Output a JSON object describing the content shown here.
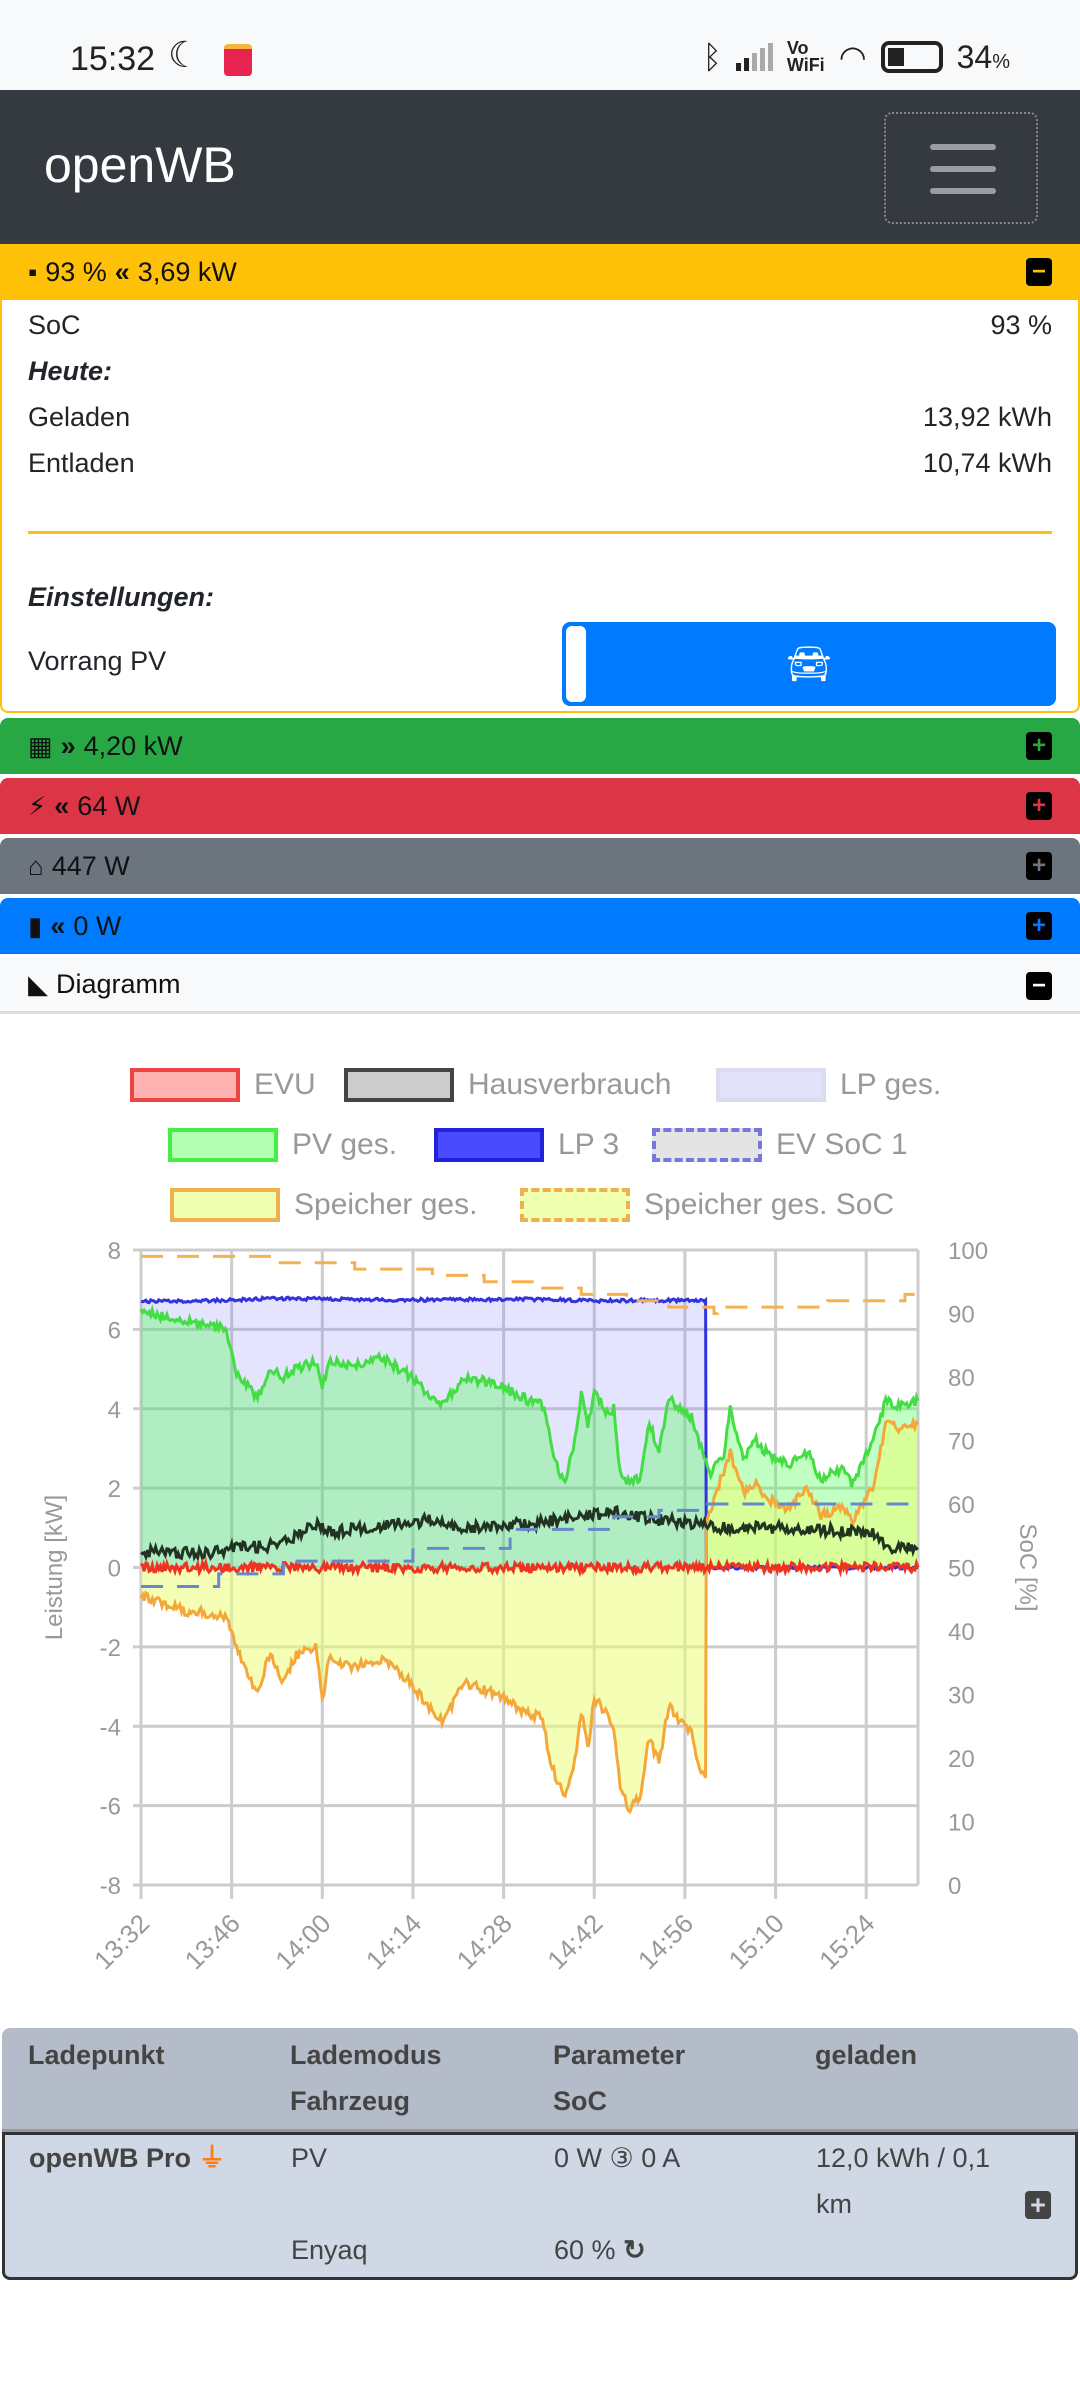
{
  "status": {
    "time": "15:32",
    "battery": "34",
    "battery_unit": "%",
    "vowifi_top": "Vo",
    "vowifi_bottom": "WiFi"
  },
  "header": {
    "title": "openWB"
  },
  "battery_bar": {
    "soc": "93 %",
    "power": "3,69 kW",
    "color": "#ffc107"
  },
  "battery_card": {
    "soc_label": "SoC",
    "soc_value": "93 %",
    "today_label": "Heute:",
    "charged_label": "Geladen",
    "charged_value": "13,92 kWh",
    "discharged_label": "Entladen",
    "discharged_value": "10,74 kWh",
    "settings_label": "Einstellungen:",
    "priority_label": "Vorrang PV"
  },
  "bars": [
    {
      "name": "pv",
      "value": "4,20 kW",
      "color": "#28a745"
    },
    {
      "name": "grid",
      "value": "64 W",
      "color": "#dc3545"
    },
    {
      "name": "house",
      "value": "447 W",
      "color": "#6c757d"
    },
    {
      "name": "chargepoints",
      "value": "0 W",
      "color": "#007bff"
    },
    {
      "name": "diagram",
      "value": "Diagramm",
      "color": "#f8f9fa"
    }
  ],
  "table": {
    "headers": [
      "Ladepunkt",
      "Lademodus",
      "Fahrzeug",
      "Parameter",
      "SoC",
      "geladen"
    ],
    "row": {
      "name": "openWB Pro",
      "mode": "PV",
      "vehicle": "Enyaq",
      "params": "0 W ③ 0 A",
      "soc": "60 %",
      "charged": "12,0 kWh / 0,1",
      "charged_unit": "km"
    }
  },
  "chart_data": {
    "type": "line",
    "ylabel": "Leistung [kW]",
    "y2label": "SoC [%]",
    "ylim": [
      -8,
      8
    ],
    "y2lim": [
      0,
      100
    ],
    "yticks": [
      "8",
      "6",
      "4",
      "2",
      "0",
      "-2",
      "-4",
      "-6",
      "-8"
    ],
    "y2ticks": [
      "100",
      "90",
      "80",
      "70",
      "60",
      "50",
      "40",
      "30",
      "20",
      "10",
      "0"
    ],
    "xticks": [
      "13:32",
      "13:46",
      "14:00",
      "14:14",
      "14:28",
      "14:42",
      "14:56",
      "15:10",
      "15:24"
    ],
    "x_unit": "minutes since 13:32",
    "xlim": [
      0,
      120
    ],
    "legend": [
      {
        "label": "EVU",
        "fill": "#ffb3b3",
        "border": "#ee4444",
        "dash": false
      },
      {
        "label": "Hausverbrauch",
        "fill": "#cccccc",
        "border": "#444444",
        "dash": false
      },
      {
        "label": "LP ges.",
        "fill": "#e2e2fb",
        "border": "#dcdcf0",
        "dash": false
      },
      {
        "label": "PV ges.",
        "fill": "#b3ffb3",
        "border": "#44ee44",
        "dash": false
      },
      {
        "label": "LP 3",
        "fill": "#4a4aff",
        "border": "#2222dd",
        "dash": false
      },
      {
        "label": "EV SoC 1",
        "fill": "#e4e4e4",
        "border": "#7777dd",
        "dash": true
      },
      {
        "label": "Speicher ges.",
        "fill": "#f0ffb0",
        "border": "#f0b050",
        "dash": false
      },
      {
        "label": "Speicher ges. SoC",
        "fill": "#f0ffb0",
        "border": "#f0b050",
        "dash": true
      }
    ],
    "series": [
      {
        "name": "LP ges.",
        "axis": "left",
        "points": [
          [
            0,
            6.7
          ],
          [
            10,
            6.72
          ],
          [
            20,
            6.78
          ],
          [
            40,
            6.74
          ],
          [
            60,
            6.76
          ],
          [
            70,
            6.72
          ],
          [
            87.2,
            6.74
          ],
          [
            87.3,
            0
          ],
          [
            120,
            0
          ]
        ]
      },
      {
        "name": "LP 3",
        "axis": "left",
        "points": [
          [
            0,
            6.7
          ],
          [
            10,
            6.72
          ],
          [
            20,
            6.78
          ],
          [
            40,
            6.74
          ],
          [
            60,
            6.76
          ],
          [
            70,
            6.72
          ],
          [
            87.2,
            6.74
          ],
          [
            87.3,
            0
          ],
          [
            120,
            0
          ]
        ]
      },
      {
        "name": "PV ges.",
        "axis": "left",
        "points": [
          [
            0,
            6.5
          ],
          [
            6.5,
            6.2
          ],
          [
            13,
            6.0
          ],
          [
            15,
            4.8
          ],
          [
            18,
            4.3
          ],
          [
            20,
            5.0
          ],
          [
            22,
            4.8
          ],
          [
            24,
            5.0
          ],
          [
            27,
            5.2
          ],
          [
            28,
            4.5
          ],
          [
            29,
            5.2
          ],
          [
            33,
            5.1
          ],
          [
            37,
            5.3
          ],
          [
            41,
            4.9
          ],
          [
            45,
            4.3
          ],
          [
            46.5,
            4.1
          ],
          [
            50,
            4.8
          ],
          [
            55,
            4.6
          ],
          [
            60,
            4.2
          ],
          [
            62,
            4.1
          ],
          [
            63,
            3.5
          ],
          [
            64,
            2.6
          ],
          [
            65.5,
            2.2
          ],
          [
            67,
            3.2
          ],
          [
            68,
            4.4
          ],
          [
            69,
            3.5
          ],
          [
            70,
            4.4
          ],
          [
            72,
            3.9
          ],
          [
            73,
            4.0
          ],
          [
            74,
            2.4
          ],
          [
            75.5,
            2.1
          ],
          [
            77,
            2.3
          ],
          [
            78.5,
            3.6
          ],
          [
            80,
            3.0
          ],
          [
            81.5,
            4.3
          ],
          [
            83,
            4.0
          ],
          [
            85,
            3.8
          ],
          [
            87,
            2.7
          ],
          [
            88,
            2.4
          ],
          [
            90,
            2.8
          ],
          [
            91,
            4.0
          ],
          [
            93,
            2.7
          ],
          [
            95,
            3.2
          ],
          [
            97,
            2.8
          ],
          [
            100,
            2.6
          ],
          [
            103,
            2.9
          ],
          [
            105,
            2.2
          ],
          [
            108,
            2.5
          ],
          [
            110,
            2.1
          ],
          [
            113,
            3.2
          ],
          [
            115,
            4.2
          ],
          [
            117,
            4.1
          ],
          [
            120,
            4.2
          ]
        ]
      },
      {
        "name": "Speicher ges.",
        "axis": "left",
        "points": [
          [
            0,
            -0.7
          ],
          [
            7,
            -1.1
          ],
          [
            13,
            -1.2
          ],
          [
            15,
            -2.1
          ],
          [
            18,
            -3.2
          ],
          [
            20,
            -2.1
          ],
          [
            22,
            -2.9
          ],
          [
            24,
            -2.2
          ],
          [
            27,
            -2.0
          ],
          [
            28,
            -3.4
          ],
          [
            29,
            -2.3
          ],
          [
            33,
            -2.5
          ],
          [
            37,
            -2.3
          ],
          [
            41,
            -2.8
          ],
          [
            45,
            -3.6
          ],
          [
            46.5,
            -3.9
          ],
          [
            50,
            -2.9
          ],
          [
            55,
            -3.2
          ],
          [
            60,
            -3.7
          ],
          [
            62,
            -3.8
          ],
          [
            63,
            -4.7
          ],
          [
            64,
            -5.3
          ],
          [
            65.5,
            -5.8
          ],
          [
            67,
            -4.9
          ],
          [
            68,
            -3.6
          ],
          [
            69,
            -4.6
          ],
          [
            70,
            -3.3
          ],
          [
            72,
            -3.7
          ],
          [
            73,
            -4.1
          ],
          [
            74,
            -5.5
          ],
          [
            75.5,
            -6.1
          ],
          [
            77,
            -5.8
          ],
          [
            78.5,
            -4.3
          ],
          [
            80,
            -4.9
          ],
          [
            81.5,
            -3.5
          ],
          [
            83,
            -3.8
          ],
          [
            85,
            -4.1
          ],
          [
            86.5,
            -5.2
          ],
          [
            87.2,
            -5.3
          ],
          [
            87.3,
            1.2
          ],
          [
            88,
            1.5
          ],
          [
            91,
            2.9
          ],
          [
            93,
            1.9
          ],
          [
            95,
            2.1
          ],
          [
            97,
            1.7
          ],
          [
            100,
            1.5
          ],
          [
            103,
            2.0
          ],
          [
            105,
            1.3
          ],
          [
            108,
            1.5
          ],
          [
            110,
            1.2
          ],
          [
            113,
            2.0
          ],
          [
            115,
            3.6
          ],
          [
            117,
            3.5
          ],
          [
            120,
            3.6
          ]
        ]
      },
      {
        "name": "Hausverbrauch",
        "axis": "left",
        "points": [
          [
            0,
            0.4
          ],
          [
            10,
            0.35
          ],
          [
            15,
            0.5
          ],
          [
            20,
            0.55
          ],
          [
            22,
            0.6
          ],
          [
            27,
            1.1
          ],
          [
            30,
            0.9
          ],
          [
            40,
            1.1
          ],
          [
            45,
            1.2
          ],
          [
            50,
            1.0
          ],
          [
            60,
            1.1
          ],
          [
            65,
            1.2
          ],
          [
            73,
            1.4
          ],
          [
            80,
            1.2
          ],
          [
            87,
            1.1
          ],
          [
            90,
            1.0
          ],
          [
            100,
            1.0
          ],
          [
            110,
            0.9
          ],
          [
            113,
            0.9
          ],
          [
            115,
            0.5
          ],
          [
            120,
            0.5
          ]
        ]
      },
      {
        "name": "EVU",
        "axis": "left",
        "points": [
          [
            0,
            0
          ],
          [
            120,
            0
          ]
        ]
      },
      {
        "name": "EV SoC 1",
        "axis": "right",
        "points": [
          [
            0,
            47
          ],
          [
            12,
            47
          ],
          [
            12,
            49
          ],
          [
            22,
            49
          ],
          [
            22,
            51
          ],
          [
            42,
            51
          ],
          [
            42,
            53
          ],
          [
            57,
            53
          ],
          [
            57,
            56
          ],
          [
            73,
            56
          ],
          [
            73,
            58
          ],
          [
            80,
            58
          ],
          [
            80,
            59
          ],
          [
            87.5,
            59
          ],
          [
            87.5,
            60
          ],
          [
            120,
            60
          ]
        ]
      },
      {
        "name": "Speicher ges. SoC",
        "axis": "right",
        "points": [
          [
            0,
            99
          ],
          [
            21,
            99
          ],
          [
            21,
            98
          ],
          [
            33,
            98
          ],
          [
            33,
            97
          ],
          [
            45,
            97
          ],
          [
            45,
            96
          ],
          [
            53,
            96
          ],
          [
            53,
            95
          ],
          [
            62,
            95
          ],
          [
            62,
            94
          ],
          [
            68,
            94
          ],
          [
            68,
            93
          ],
          [
            75,
            93
          ],
          [
            75,
            92
          ],
          [
            81.5,
            92
          ],
          [
            81.5,
            91
          ],
          [
            88.5,
            91
          ],
          [
            88.5,
            90
          ],
          [
            89,
            90
          ],
          [
            89,
            91
          ],
          [
            106,
            91
          ],
          [
            106,
            92
          ],
          [
            118,
            92
          ],
          [
            118,
            93
          ],
          [
            120,
            93
          ]
        ]
      }
    ]
  }
}
